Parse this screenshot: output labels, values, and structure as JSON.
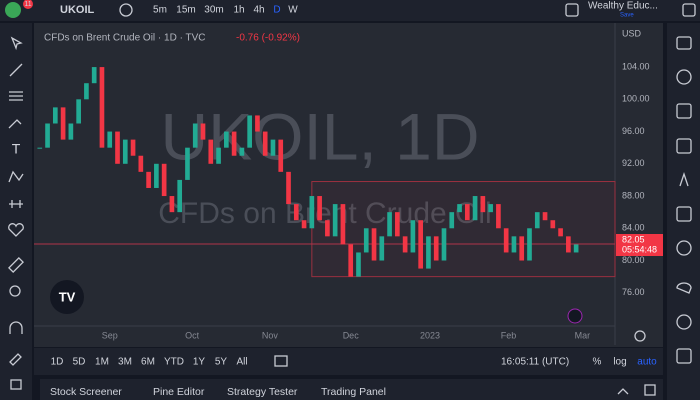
{
  "toolbar": {
    "badge": "11",
    "symbol": "UKOIL",
    "intervals": [
      "5m",
      "15m",
      "30m",
      "1h",
      "4h",
      "D",
      "W"
    ],
    "account": "Wealthy Educ...",
    "save": "Save"
  },
  "chart_data": {
    "type": "candlestick",
    "legend": "CFDs on Brent Crude Oil · 1D · TVC",
    "change": "-0.76 (-0.92%)",
    "watermark": "UKOIL, 1D",
    "watermark_subtitle": "CFDs on Brent Crude Oil",
    "currency": "USD",
    "values": [
      94,
      97,
      99,
      95,
      97,
      100,
      102,
      104,
      94,
      96,
      92,
      95,
      93,
      91,
      89,
      92,
      88,
      86,
      90,
      94,
      97,
      95,
      92,
      94,
      96,
      93,
      94,
      98,
      96,
      93,
      95,
      91,
      87,
      85,
      84,
      88,
      85,
      83,
      87,
      82,
      78,
      81,
      84,
      80,
      83,
      86,
      83,
      81,
      85,
      79,
      83,
      80,
      84,
      86,
      87,
      85,
      88,
      86,
      87,
      84,
      81,
      83,
      80,
      84,
      86,
      85,
      84,
      83,
      81,
      82
    ],
    "colors": {
      "up": "#22ab94",
      "down": "#f23645"
    },
    "xlim": [
      -1,
      74
    ],
    "xticks": [
      {
        "value": 9,
        "label": "Sep"
      },
      {
        "value": 19.6,
        "label": "Oct"
      },
      {
        "value": 29.6,
        "label": "Nov"
      },
      {
        "value": 40,
        "label": "Dec"
      },
      {
        "value": 50.2,
        "label": "2023"
      },
      {
        "value": 60.3,
        "label": "Feb"
      },
      {
        "value": 69.8,
        "label": "Mar"
      }
    ],
    "ylim": [
      72,
      108.6
    ],
    "yticks": [
      {
        "value": 76,
        "label": "76.00"
      },
      {
        "value": 80,
        "label": "80.00"
      },
      {
        "value": 84,
        "label": "84.00"
      },
      {
        "value": 88,
        "label": "88.00"
      },
      {
        "value": 92,
        "label": "92.00"
      },
      {
        "value": 96,
        "label": "96.00"
      },
      {
        "value": 100,
        "label": "100.00"
      },
      {
        "value": 104,
        "label": "104.00"
      }
    ],
    "last_price": 82.05,
    "countdown": "05:54:48",
    "box": {
      "start": 35,
      "low": 78,
      "high": 89.8
    }
  },
  "bottom_bar": {
    "ranges": [
      "1D",
      "5D",
      "1M",
      "3M",
      "6M",
      "YTD",
      "1Y",
      "5Y",
      "All"
    ],
    "time": "16:05:11 (UTC)",
    "options": [
      "%",
      "log",
      "auto"
    ]
  },
  "panel_tabs": [
    "Stock Screener",
    "Pine Editor",
    "Strategy Tester",
    "Trading Panel"
  ]
}
